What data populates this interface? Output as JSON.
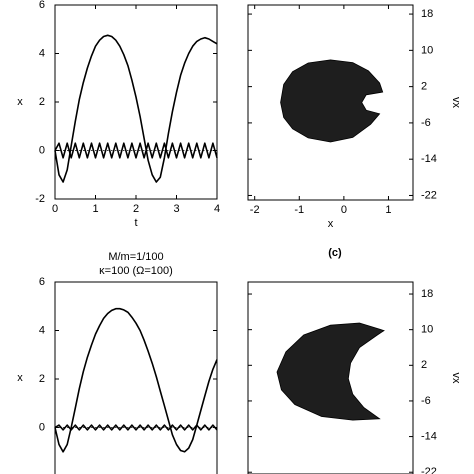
{
  "chart_data": [
    {
      "type": "line",
      "xlabel": "t",
      "ylabel": "x",
      "xlim": [
        0,
        4
      ],
      "xticks": [
        0,
        1,
        2,
        3,
        4
      ],
      "ylim": [
        -2,
        6
      ],
      "yticks": [
        -2,
        0,
        2,
        4,
        6
      ],
      "reference_line": 0,
      "x": [
        0,
        0.1,
        0.2,
        0.3,
        0.4,
        0.5,
        0.6,
        0.7,
        0.8,
        0.9,
        1,
        1.1,
        1.2,
        1.3,
        1.4,
        1.5,
        1.6,
        1.7,
        1.8,
        1.9,
        2,
        2.1,
        2.2,
        2.3,
        2.4,
        2.5,
        2.6,
        2.7,
        2.8,
        2.9,
        3,
        3.1,
        3.2,
        3.3,
        3.4,
        3.5,
        3.6,
        3.7,
        3.8,
        3.9,
        4
      ],
      "series": [
        {
          "color": "#000000",
          "values": [
            0,
            -1.0,
            -1.3,
            -0.8,
            0.2,
            1.2,
            2.1,
            2.8,
            3.4,
            3.9,
            4.3,
            4.55,
            4.7,
            4.75,
            4.7,
            4.55,
            4.3,
            3.95,
            3.5,
            2.9,
            2.2,
            1.4,
            0.5,
            -0.4,
            -1.0,
            -1.3,
            -1.1,
            -0.3,
            0.7,
            1.6,
            2.4,
            3.1,
            3.6,
            4.0,
            4.3,
            4.5,
            4.6,
            4.65,
            4.6,
            4.5,
            4.4
          ]
        },
        {
          "color": "#000000",
          "values": [
            0,
            0.3,
            -0.3,
            0.3,
            -0.3,
            0.3,
            -0.3,
            0.3,
            -0.3,
            0.3,
            -0.3,
            0.3,
            -0.3,
            0.3,
            -0.3,
            0.3,
            -0.3,
            0.3,
            -0.3,
            0.3,
            -0.3,
            0.3,
            -0.3,
            0.3,
            -0.3,
            0.3,
            -0.3,
            0.3,
            -0.3,
            0.3,
            -0.3,
            0.3,
            -0.3,
            0.3,
            -0.3,
            0.3,
            -0.3,
            0.3,
            -0.3,
            0.3,
            -0.3
          ]
        }
      ]
    },
    {
      "type": "phase",
      "xlabel": "x",
      "ylabel": "vx",
      "xlim": [
        -2.15,
        1.55
      ],
      "xticks": [
        -2,
        -1,
        0,
        1
      ],
      "ylim": [
        -23,
        20
      ],
      "yticks": [
        -22,
        -14,
        -6,
        2,
        10,
        18
      ],
      "color": "#1e1e1e",
      "x": [
        -1.42,
        -1.35,
        -1.15,
        -0.8,
        -0.3,
        0.2,
        0.55,
        0.8,
        0.87,
        0.5,
        0.4,
        0.5,
        0.8,
        0.6,
        0.2,
        -0.3,
        -0.8,
        -1.15,
        -1.35
      ],
      "values": [
        -1.5,
        2.5,
        5.3,
        7.2,
        7.9,
        7.3,
        5.5,
        2.8,
        0.8,
        0.2,
        -1.5,
        -3.2,
        -4.0,
        -6.3,
        -9.2,
        -10.2,
        -9.3,
        -7.3,
        -4.8
      ]
    },
    {
      "type": "line",
      "title": "M/m=1/100",
      "subtitle": "κ=100 (Ω=100)",
      "ylabel": "x",
      "xlim": [
        0,
        4
      ],
      "ylim": [
        -2,
        6
      ],
      "yticks": [
        0,
        2,
        4,
        6
      ],
      "reference_line": 0,
      "x": [
        0,
        0.1,
        0.2,
        0.3,
        0.4,
        0.5,
        0.6,
        0.7,
        0.8,
        0.9,
        1,
        1.1,
        1.2,
        1.3,
        1.4,
        1.5,
        1.6,
        1.7,
        1.8,
        1.9,
        2,
        2.1,
        2.2,
        2.3,
        2.4,
        2.5,
        2.6,
        2.7,
        2.8,
        2.9,
        3,
        3.1,
        3.2,
        3.3,
        3.4,
        3.5,
        3.6,
        3.7,
        3.8,
        3.9,
        4
      ],
      "series": [
        {
          "color": "#000000",
          "values": [
            0,
            -0.7,
            -1.0,
            -0.7,
            0,
            0.8,
            1.6,
            2.3,
            2.9,
            3.4,
            3.85,
            4.2,
            4.5,
            4.7,
            4.83,
            4.9,
            4.9,
            4.85,
            4.75,
            4.55,
            4.3,
            4.0,
            3.6,
            3.15,
            2.65,
            2.1,
            1.5,
            0.9,
            0.3,
            -0.3,
            -0.7,
            -0.95,
            -1.0,
            -0.85,
            -0.5,
            0.1,
            0.7,
            1.3,
            1.9,
            2.4,
            2.8
          ]
        },
        {
          "color": "#000000",
          "values": [
            0,
            0.1,
            -0.1,
            0.1,
            -0.1,
            0.1,
            -0.1,
            0.1,
            -0.1,
            0.1,
            -0.1,
            0.1,
            -0.1,
            0.1,
            -0.1,
            0.1,
            -0.1,
            0.1,
            -0.1,
            0.1,
            -0.1,
            0.1,
            -0.1,
            0.1,
            -0.1,
            0.1,
            -0.1,
            0.1,
            -0.1,
            0.1,
            -0.1,
            0.1,
            -0.1,
            0.1,
            -0.1,
            0.1,
            -0.1,
            0.1,
            -0.1,
            0.1,
            -0.1
          ]
        }
      ]
    },
    {
      "type": "phase",
      "ylabel": "vx",
      "xlim": [
        -2.15,
        1.55
      ],
      "ylim": [
        -22.4,
        20.7
      ],
      "yticks": [
        -22,
        -14,
        -6,
        2,
        10,
        18
      ],
      "color": "#1e1e1e",
      "x": [
        0.35,
        -0.3,
        -0.9,
        -1.3,
        -1.5,
        -1.4,
        -1.1,
        -0.5,
        0.2,
        0.8,
        0.45,
        0.2,
        0.1,
        0.15,
        0.35,
        0.75,
        0.9
      ],
      "values": [
        11.5,
        11,
        8.8,
        5,
        0.5,
        -3.5,
        -6.8,
        -9.5,
        -10.3,
        -10,
        -7.5,
        -4.5,
        -1,
        2.5,
        6,
        8.8,
        9.8
      ]
    }
  ],
  "panel_label": "(c)"
}
